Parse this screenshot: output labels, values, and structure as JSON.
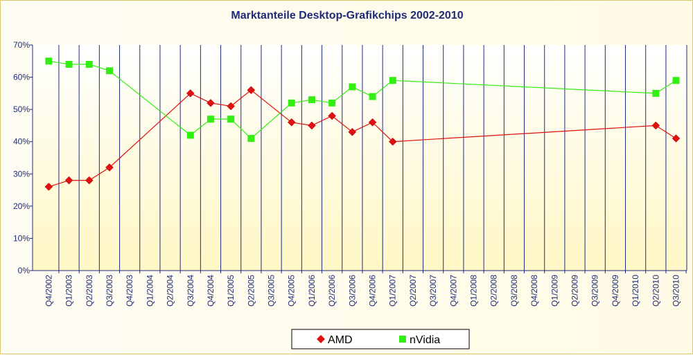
{
  "chart_data": {
    "type": "line",
    "title": "Marktanteile Desktop-Grafikchips 2002-2010",
    "xlabel": "",
    "ylabel": "",
    "ylim": [
      0,
      70
    ],
    "y_ticks": [
      "0%",
      "10%",
      "20%",
      "30%",
      "40%",
      "50%",
      "60%",
      "70%"
    ],
    "y_tick_values": [
      0,
      10,
      20,
      30,
      40,
      50,
      60,
      70
    ],
    "grid": "vertical",
    "legend_position": "bottom",
    "categories": [
      "Q4/2002",
      "Q1/2003",
      "Q2/2003",
      "Q3/2003",
      "Q4/2003",
      "Q1/2004",
      "Q2/2004",
      "Q3/2004",
      "Q4/2004",
      "Q1/2005",
      "Q2/2005",
      "Q3/2005",
      "Q4/2005",
      "Q1/2006",
      "Q2/2006",
      "Q3/2006",
      "Q4/2006",
      "Q1/2007",
      "Q2/2007",
      "Q3/2007",
      "Q4/2007",
      "Q1/2008",
      "Q2/2008",
      "Q3/2008",
      "Q4/2008",
      "Q1/2009",
      "Q2/2009",
      "Q3/2009",
      "Q4/2009",
      "Q1/2010",
      "Q2/2010",
      "Q3/2010"
    ],
    "series": [
      {
        "name": "AMD",
        "color": "#e01010",
        "marker": "diamond",
        "values": [
          26,
          28,
          28,
          32,
          null,
          null,
          null,
          55,
          52,
          51,
          56,
          null,
          46,
          45,
          48,
          43,
          46,
          40,
          null,
          null,
          null,
          null,
          null,
          null,
          null,
          null,
          null,
          null,
          null,
          null,
          45,
          41
        ]
      },
      {
        "name": "nVidia",
        "color": "#33ee11",
        "marker": "square",
        "values": [
          65,
          64,
          64,
          62,
          null,
          null,
          null,
          42,
          47,
          47,
          41,
          null,
          52,
          53,
          52,
          57,
          54,
          59,
          null,
          null,
          null,
          null,
          null,
          null,
          null,
          null,
          null,
          null,
          null,
          null,
          55,
          59
        ]
      }
    ]
  },
  "colors": {
    "title": "#1f2a78",
    "axis": "#1f2a78",
    "grid": "#1f2a78"
  }
}
